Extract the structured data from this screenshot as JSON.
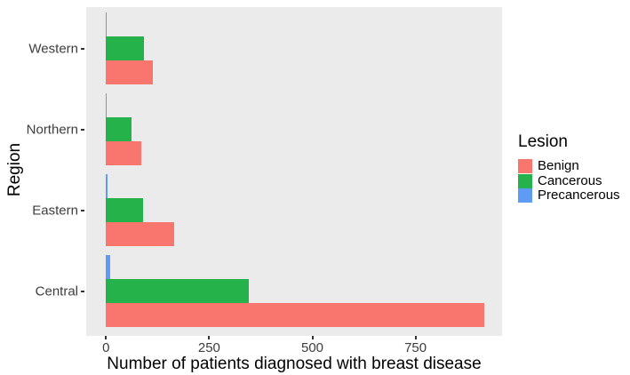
{
  "figure": {
    "background": "#FFFFFF",
    "panel_background": "#EBEBEB",
    "tick_color": "#333333",
    "axis_text_color": "#3d3d3d"
  },
  "chart_data": {
    "type": "bar",
    "orientation": "horizontal",
    "title": "",
    "xlabel": "Number of patients diagnosed with breast disease",
    "ylabel": "Region",
    "categories": [
      "Western",
      "Northern",
      "Eastern",
      "Central"
    ],
    "categories_order": "top-to-bottom",
    "series": [
      {
        "name": "Benign",
        "color": "#F8766D",
        "values": [
          113,
          85,
          165,
          916
        ]
      },
      {
        "name": "Cancerous",
        "color": "#26B24A",
        "values": [
          92,
          62,
          89,
          347
        ]
      },
      {
        "name": "Precancerous",
        "color": "#5E9BF5",
        "values": [
          2,
          2,
          3,
          10
        ]
      }
    ],
    "series_row_order_in_group": [
      "Precancerous",
      "Cancerous",
      "Benign"
    ],
    "x_ticks": [
      0,
      250,
      500,
      750
    ],
    "xlim": [
      -48,
      960
    ],
    "grid": false,
    "legend": {
      "title": "Lesion",
      "position": "right"
    }
  }
}
